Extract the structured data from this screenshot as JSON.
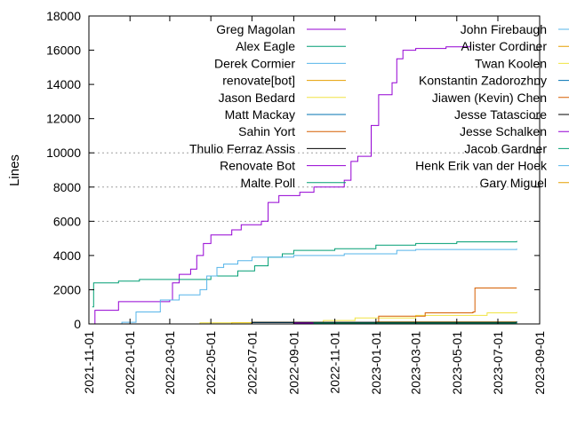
{
  "chart_data": {
    "type": "line",
    "title": "",
    "xlabel": "",
    "ylabel": "Lines",
    "ylim": [
      0,
      18000
    ],
    "xlim": [
      "2021-11-01",
      "2023-09-01"
    ],
    "yticks": [
      0,
      2000,
      4000,
      6000,
      8000,
      10000,
      12000,
      14000,
      16000,
      18000
    ],
    "ytick_labels": [
      "0",
      "2000",
      "4000",
      "6000",
      "8000",
      "10000",
      "12000",
      "14000",
      "16000",
      "18000"
    ],
    "xticks": [
      "2021-11-01",
      "2022-01-01",
      "2022-03-01",
      "2022-05-01",
      "2022-07-01",
      "2022-09-01",
      "2022-11-01",
      "2023-01-01",
      "2023-03-01",
      "2023-05-01",
      "2023-07-01",
      "2023-09-01"
    ],
    "grid": "dashed horizontal at 6000, 8000, 10000",
    "legend": "top, two columns",
    "series": [
      {
        "name": "Greg Magolan",
        "color": "#9400d3",
        "points": [
          [
            "2021-11-08",
            0
          ],
          [
            "2021-11-10",
            800
          ],
          [
            "2021-12-15",
            1300
          ],
          [
            "2022-03-01",
            1400
          ],
          [
            "2022-03-05",
            2400
          ],
          [
            "2022-03-15",
            2900
          ],
          [
            "2022-04-01",
            3200
          ],
          [
            "2022-04-10",
            4000
          ],
          [
            "2022-04-20",
            4700
          ],
          [
            "2022-05-01",
            5200
          ],
          [
            "2022-06-01",
            5500
          ],
          [
            "2022-06-15",
            5800
          ],
          [
            "2022-07-15",
            6000
          ],
          [
            "2022-07-25",
            7100
          ],
          [
            "2022-08-10",
            7500
          ],
          [
            "2022-09-10",
            7700
          ],
          [
            "2022-10-01",
            8000
          ],
          [
            "2022-11-15",
            8400
          ],
          [
            "2022-11-25",
            9500
          ],
          [
            "2022-12-05",
            9800
          ],
          [
            "2022-12-25",
            11600
          ],
          [
            "2023-01-05",
            13400
          ],
          [
            "2023-01-25",
            14100
          ],
          [
            "2023-02-01",
            15500
          ],
          [
            "2023-02-10",
            16000
          ],
          [
            "2023-03-01",
            16100
          ],
          [
            "2023-04-15",
            16200
          ],
          [
            "2023-05-20",
            16250
          ]
        ]
      },
      {
        "name": "Alex Eagle",
        "color": "#009e73",
        "points": [
          [
            "2021-11-06",
            1000
          ],
          [
            "2021-11-08",
            2400
          ],
          [
            "2021-12-15",
            2500
          ],
          [
            "2022-01-15",
            2600
          ],
          [
            "2022-05-01",
            2800
          ],
          [
            "2022-06-10",
            3100
          ],
          [
            "2022-07-05",
            3400
          ],
          [
            "2022-07-25",
            3900
          ],
          [
            "2022-08-15",
            4100
          ],
          [
            "2022-09-01",
            4300
          ],
          [
            "2022-11-01",
            4400
          ],
          [
            "2023-01-01",
            4600
          ],
          [
            "2023-03-01",
            4700
          ],
          [
            "2023-05-01",
            4800
          ],
          [
            "2023-07-29",
            4850
          ]
        ]
      },
      {
        "name": "Derek Cormier",
        "color": "#56b4e9",
        "points": [
          [
            "2021-11-06",
            0
          ],
          [
            "2021-12-20",
            100
          ],
          [
            "2022-01-10",
            700
          ],
          [
            "2022-02-15",
            1400
          ],
          [
            "2022-03-15",
            1700
          ],
          [
            "2022-04-15",
            2000
          ],
          [
            "2022-04-25",
            2800
          ],
          [
            "2022-05-10",
            3300
          ],
          [
            "2022-05-20",
            3500
          ],
          [
            "2022-06-10",
            3700
          ],
          [
            "2022-07-01",
            3900
          ],
          [
            "2022-09-01",
            4000
          ],
          [
            "2022-11-15",
            4100
          ],
          [
            "2023-02-01",
            4300
          ],
          [
            "2023-03-01",
            4350
          ],
          [
            "2023-07-29",
            4400
          ]
        ]
      },
      {
        "name": "renovate[bot]",
        "color": "#e69f00",
        "points": [
          [
            "2021-11-06",
            0
          ],
          [
            "2022-04-01",
            0
          ],
          [
            "2022-06-01",
            80
          ],
          [
            "2023-01-01",
            120
          ],
          [
            "2023-07-29",
            150
          ]
        ]
      },
      {
        "name": "Jason Bedard",
        "color": "#f0e442",
        "points": [
          [
            "2021-11-06",
            0
          ],
          [
            "2022-04-15",
            60
          ],
          [
            "2022-07-01",
            100
          ],
          [
            "2022-10-15",
            200
          ],
          [
            "2022-12-01",
            350
          ],
          [
            "2023-03-01",
            500
          ],
          [
            "2023-06-15",
            650
          ],
          [
            "2023-07-29",
            700
          ]
        ]
      },
      {
        "name": "Matt Mackay",
        "color": "#0072b2",
        "points": [
          [
            "2021-11-06",
            0
          ],
          [
            "2022-05-01",
            0
          ],
          [
            "2022-07-01",
            80
          ],
          [
            "2023-07-29",
            150
          ]
        ]
      },
      {
        "name": "Sahin Yort",
        "color": "#d55e00",
        "points": [
          [
            "2021-11-06",
            0
          ],
          [
            "2023-01-01",
            0
          ],
          [
            "2023-01-05",
            450
          ],
          [
            "2023-03-15",
            650
          ],
          [
            "2023-05-25",
            700
          ],
          [
            "2023-05-28",
            2100
          ],
          [
            "2023-07-29",
            2100
          ]
        ]
      },
      {
        "name": "Thulio Ferraz Assis",
        "color": "#000000",
        "points": [
          [
            "2021-11-06",
            0
          ],
          [
            "2022-06-15",
            0
          ],
          [
            "2022-07-01",
            100
          ],
          [
            "2023-07-29",
            100
          ]
        ]
      },
      {
        "name": "Renovate Bot",
        "color": "#9400d3",
        "points": [
          [
            "2021-11-06",
            0
          ],
          [
            "2022-08-01",
            0
          ],
          [
            "2022-09-01",
            50
          ],
          [
            "2023-07-29",
            50
          ]
        ]
      },
      {
        "name": "Malte Poll",
        "color": "#009e73",
        "points": [
          [
            "2021-11-06",
            0
          ],
          [
            "2022-09-01",
            0
          ],
          [
            "2022-10-01",
            50
          ],
          [
            "2023-07-29",
            60
          ]
        ]
      },
      {
        "name": "John Firebaugh",
        "color": "#56b4e9",
        "points": [
          [
            "2021-11-06",
            0
          ],
          [
            "2023-07-29",
            40
          ]
        ]
      },
      {
        "name": "Alister Cordiner",
        "color": "#e69f00",
        "points": [
          [
            "2021-11-06",
            0
          ],
          [
            "2023-07-29",
            30
          ]
        ]
      },
      {
        "name": "Twan Koolen",
        "color": "#f0e442",
        "points": [
          [
            "2021-11-06",
            0
          ],
          [
            "2023-07-29",
            30
          ]
        ]
      },
      {
        "name": "Konstantin Zadorozhny",
        "color": "#0072b2",
        "points": [
          [
            "2021-11-06",
            0
          ],
          [
            "2023-07-29",
            25
          ]
        ]
      },
      {
        "name": "Jiawen (Kevin) Chen",
        "color": "#d55e00",
        "points": [
          [
            "2021-11-06",
            0
          ],
          [
            "2023-07-29",
            20
          ]
        ]
      },
      {
        "name": "Jesse Tatasciore",
        "color": "#000000",
        "points": [
          [
            "2021-11-06",
            0
          ],
          [
            "2023-07-29",
            20
          ]
        ]
      },
      {
        "name": "Jesse Schalken",
        "color": "#9400d3",
        "points": [
          [
            "2021-11-06",
            0
          ],
          [
            "2023-07-29",
            15
          ]
        ]
      },
      {
        "name": "Jacob Gardner",
        "color": "#009e73",
        "points": [
          [
            "2021-11-06",
            0
          ],
          [
            "2023-07-29",
            15
          ]
        ]
      },
      {
        "name": "Henk Erik van der Hoek",
        "color": "#56b4e9",
        "points": [
          [
            "2021-11-06",
            0
          ],
          [
            "2023-07-29",
            10
          ]
        ]
      },
      {
        "name": "Gary Miguel",
        "color": "#e69f00",
        "points": [
          [
            "2021-11-06",
            0
          ],
          [
            "2023-07-29",
            10
          ]
        ]
      }
    ]
  }
}
